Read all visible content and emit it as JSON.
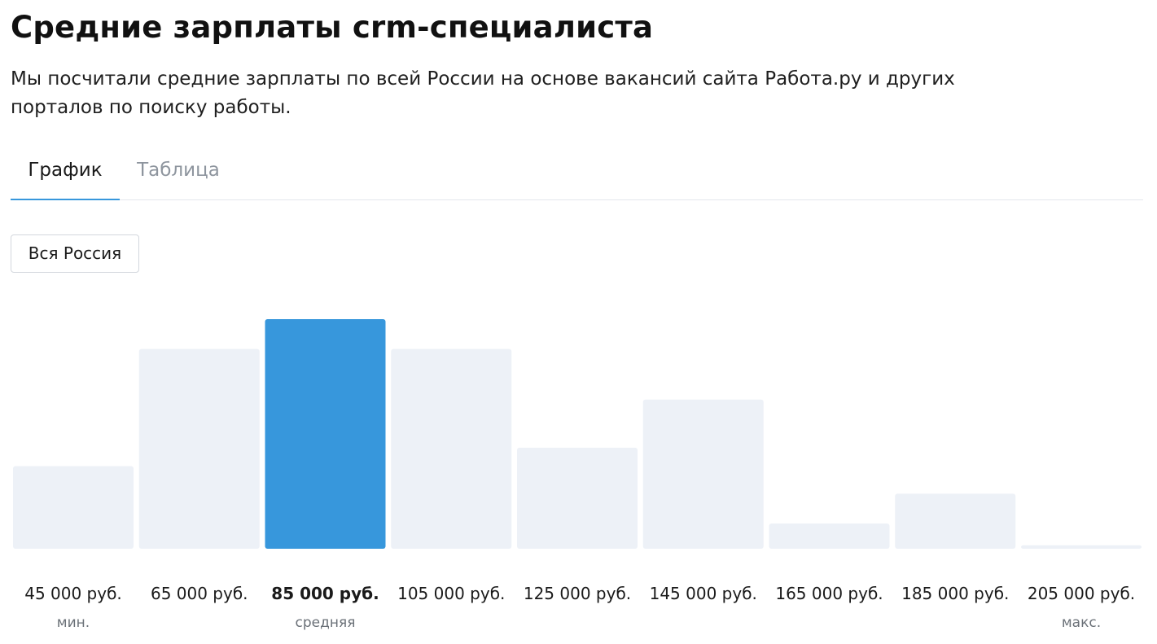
{
  "page": {
    "title": "Средние зарплаты crm-специалиста",
    "intro": "Мы посчитали средние зарплаты по всей России на основе вакансий сайта Работа.ру и других порталов по поиску работы."
  },
  "tabs": [
    {
      "label": "График"
    },
    {
      "label": "Таблица"
    }
  ],
  "region": {
    "label": "Вся Россия"
  },
  "colors": {
    "accent": "#3797dc",
    "bar": "#edf1f7",
    "sublabel": "#6b7178",
    "text": "#1a1a1a"
  },
  "chart_data": {
    "type": "bar",
    "title": "",
    "xlabel": "",
    "ylabel": "",
    "categories": [
      "45 000 руб.",
      "65 000 руб.",
      "85 000 руб.",
      "105 000 руб.",
      "125 000 руб.",
      "145 000 руб.",
      "165 000 руб.",
      "185 000 руб.",
      "205 000 руб."
    ],
    "values": [
      36,
      87,
      100,
      87,
      44,
      65,
      11,
      24,
      1.5
    ],
    "sublabels": [
      "мин.",
      "",
      "средняя",
      "",
      "",
      "",
      "",
      "",
      "макс."
    ],
    "highlight_index": 2,
    "ylim": [
      0,
      100
    ],
    "grid": false
  }
}
